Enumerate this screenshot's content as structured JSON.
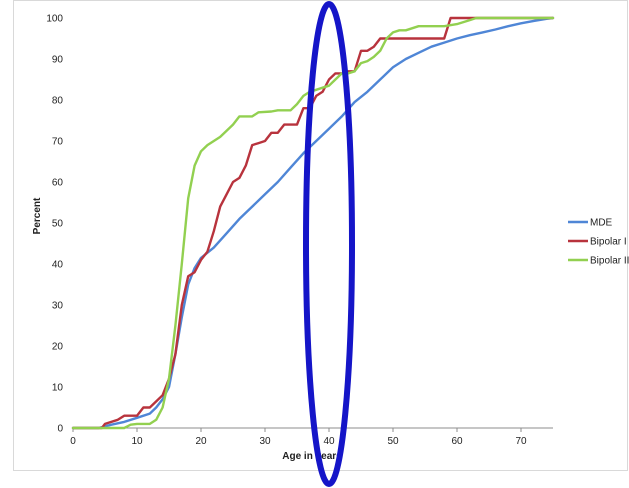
{
  "chart_data": {
    "type": "line",
    "title": "",
    "xlabel": "Age in years",
    "ylabel": "Percent",
    "xlim": [
      0,
      75
    ],
    "ylim": [
      0,
      100
    ],
    "x_ticks": [
      0,
      10,
      20,
      30,
      40,
      50,
      60,
      70
    ],
    "y_ticks": [
      0,
      10,
      20,
      30,
      40,
      50,
      60,
      70,
      80,
      90,
      100
    ],
    "grid": false,
    "legend_position": "right",
    "highlight": {
      "shape": "ellipse",
      "center_x": 40,
      "color": "#1515c8"
    },
    "series": [
      {
        "name": "MDE",
        "color": "#4f86d6",
        "points": [
          [
            0,
            0
          ],
          [
            4,
            0
          ],
          [
            6,
            0.8
          ],
          [
            8,
            1.5
          ],
          [
            10,
            2.5
          ],
          [
            12,
            3.5
          ],
          [
            13,
            5
          ],
          [
            14,
            7
          ],
          [
            15,
            10
          ],
          [
            16,
            18
          ],
          [
            17,
            27
          ],
          [
            18,
            35
          ],
          [
            19,
            39
          ],
          [
            20,
            41.5
          ],
          [
            22,
            44
          ],
          [
            24,
            47.5
          ],
          [
            26,
            51
          ],
          [
            28,
            54
          ],
          [
            30,
            57
          ],
          [
            32,
            60
          ],
          [
            34,
            63.5
          ],
          [
            36,
            67
          ],
          [
            38,
            70
          ],
          [
            40,
            73
          ],
          [
            42,
            76
          ],
          [
            44,
            79.5
          ],
          [
            46,
            82
          ],
          [
            48,
            85
          ],
          [
            50,
            88
          ],
          [
            52,
            90
          ],
          [
            54,
            91.5
          ],
          [
            56,
            93
          ],
          [
            58,
            94
          ],
          [
            60,
            95
          ],
          [
            62,
            95.8
          ],
          [
            64,
            96.5
          ],
          [
            66,
            97.2
          ],
          [
            68,
            98
          ],
          [
            70,
            98.7
          ],
          [
            72,
            99.3
          ],
          [
            74,
            99.8
          ],
          [
            75,
            100
          ]
        ]
      },
      {
        "name": "Bipolar I",
        "color": "#b8333d",
        "points": [
          [
            0,
            0
          ],
          [
            4.5,
            0
          ],
          [
            5,
            1
          ],
          [
            7,
            2
          ],
          [
            8,
            3
          ],
          [
            10,
            3
          ],
          [
            11,
            5
          ],
          [
            12,
            5
          ],
          [
            13,
            6.5
          ],
          [
            14,
            8
          ],
          [
            15,
            12
          ],
          [
            16,
            18
          ],
          [
            17,
            30
          ],
          [
            18,
            37
          ],
          [
            19,
            38
          ],
          [
            20,
            41
          ],
          [
            21,
            43
          ],
          [
            22,
            48
          ],
          [
            23,
            54
          ],
          [
            24,
            57
          ],
          [
            25,
            60
          ],
          [
            26,
            61
          ],
          [
            27,
            64
          ],
          [
            28,
            69
          ],
          [
            29,
            69.5
          ],
          [
            30,
            70
          ],
          [
            31,
            72
          ],
          [
            32,
            72
          ],
          [
            33,
            74
          ],
          [
            34,
            74
          ],
          [
            35,
            74
          ],
          [
            36,
            78
          ],
          [
            37,
            78
          ],
          [
            38,
            81
          ],
          [
            39,
            82
          ],
          [
            40,
            85
          ],
          [
            41,
            86.5
          ],
          [
            42,
            86.5
          ],
          [
            43,
            87
          ],
          [
            44,
            87
          ],
          [
            45,
            92
          ],
          [
            46,
            92
          ],
          [
            47,
            93
          ],
          [
            48,
            95
          ],
          [
            50,
            95
          ],
          [
            52,
            95
          ],
          [
            54,
            95
          ],
          [
            56,
            95
          ],
          [
            58,
            95
          ],
          [
            59,
            100
          ],
          [
            62,
            100
          ],
          [
            75,
            100
          ]
        ]
      },
      {
        "name": "Bipolar II",
        "color": "#92d050",
        "points": [
          [
            0,
            0
          ],
          [
            8,
            0
          ],
          [
            9,
            0.8
          ],
          [
            10,
            1
          ],
          [
            11,
            1
          ],
          [
            12,
            1
          ],
          [
            13,
            2
          ],
          [
            14,
            5
          ],
          [
            15,
            12
          ],
          [
            16,
            25
          ],
          [
            17,
            40
          ],
          [
            18,
            56
          ],
          [
            19,
            64
          ],
          [
            20,
            67.5
          ],
          [
            21,
            69
          ],
          [
            22,
            70
          ],
          [
            23,
            71
          ],
          [
            24,
            72.5
          ],
          [
            25,
            74
          ],
          [
            26,
            76
          ],
          [
            28,
            76
          ],
          [
            29,
            77
          ],
          [
            31,
            77.2
          ],
          [
            32,
            77.5
          ],
          [
            34,
            77.5
          ],
          [
            35,
            79
          ],
          [
            36,
            81
          ],
          [
            37,
            82
          ],
          [
            38,
            82.5
          ],
          [
            39,
            83
          ],
          [
            40,
            83.5
          ],
          [
            41,
            85
          ],
          [
            42,
            86.5
          ],
          [
            43,
            86.5
          ],
          [
            44,
            87
          ],
          [
            45,
            89
          ],
          [
            46,
            89.5
          ],
          [
            47,
            90.5
          ],
          [
            48,
            92
          ],
          [
            49,
            95
          ],
          [
            50,
            96.5
          ],
          [
            51,
            97
          ],
          [
            52,
            97
          ],
          [
            54,
            98
          ],
          [
            56,
            98
          ],
          [
            58,
            98
          ],
          [
            60,
            98.5
          ],
          [
            61,
            99
          ],
          [
            62,
            99.5
          ],
          [
            63,
            100
          ],
          [
            75,
            100
          ]
        ]
      }
    ]
  }
}
